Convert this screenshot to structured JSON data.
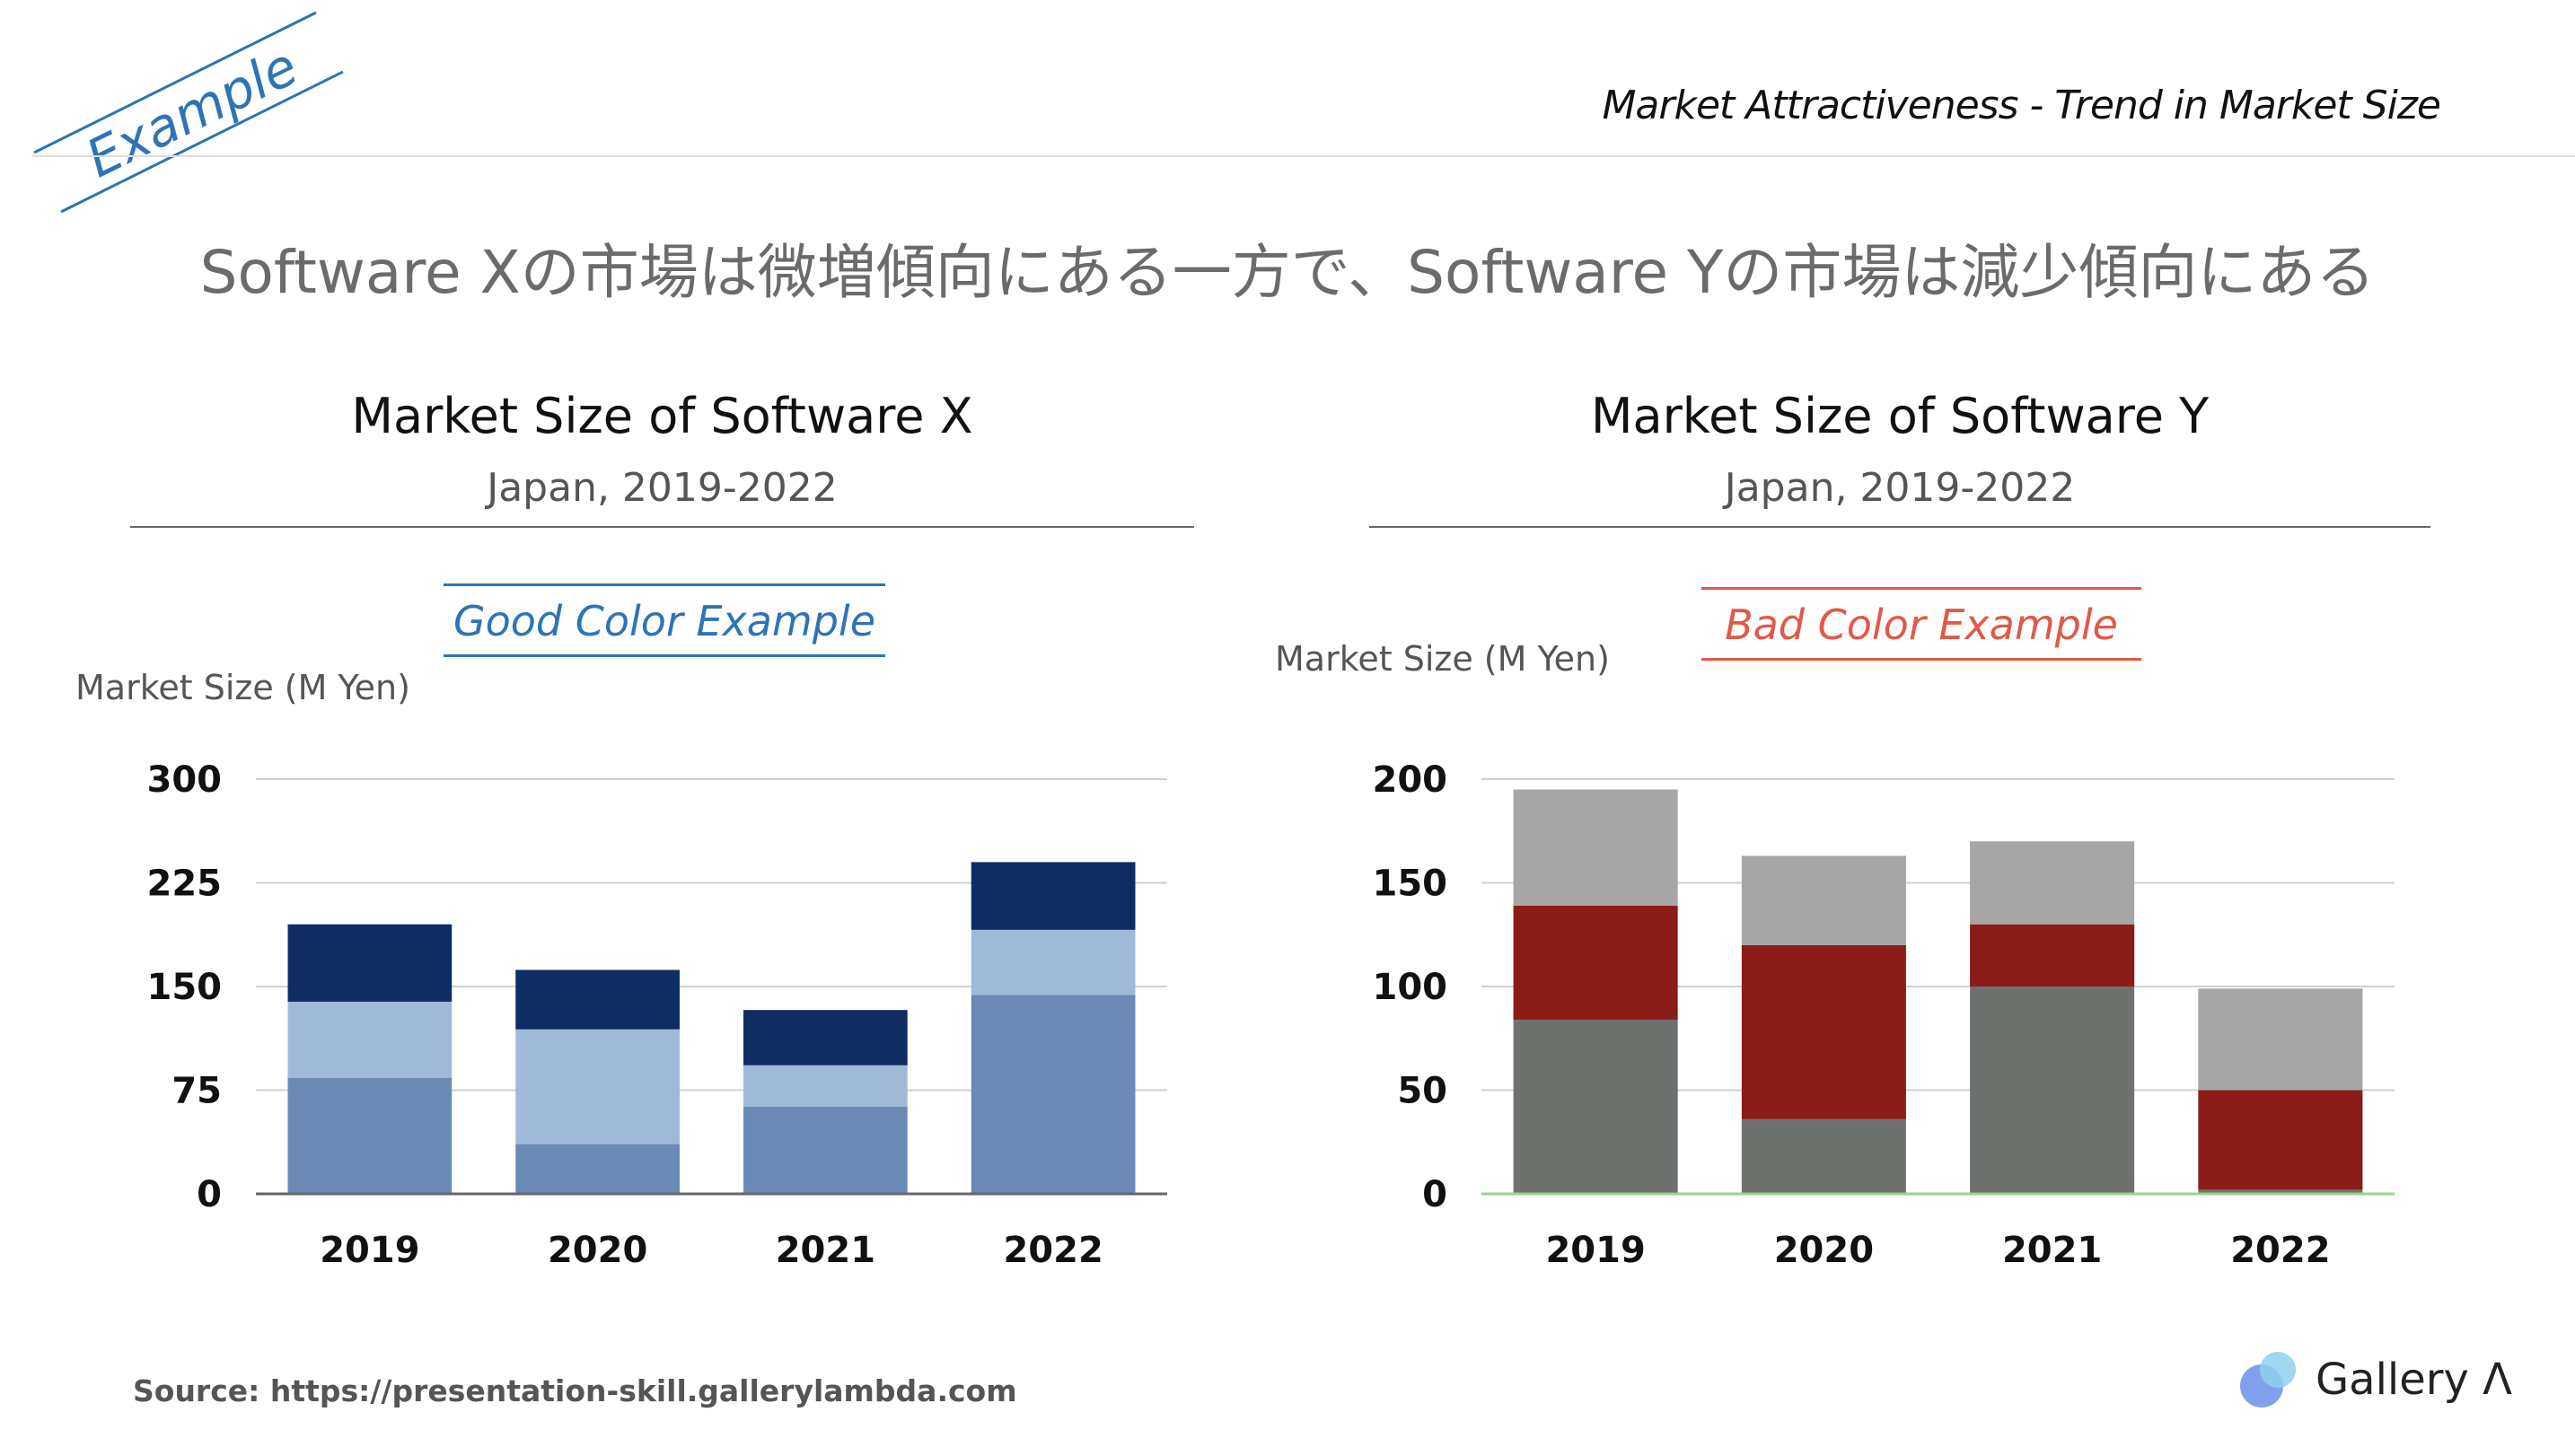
{
  "header": {
    "title": "Market Attractiveness - Trend in Market Size",
    "stamp": "Example"
  },
  "headline": "Software Xの市場は微増傾向にある一方で、Software Yの市場は減少傾向にある",
  "left": {
    "title": "Market Size of Software X",
    "subtitle": "Japan, 2019-2022",
    "tag": "Good Color Example",
    "unit": "Market Size (M Yen)"
  },
  "right": {
    "title": "Market Size of Software Y",
    "subtitle": "Japan, 2019-2022",
    "tag": "Bad Color Example",
    "unit": "Market Size (M Yen)"
  },
  "footer": {
    "source": "Source: https://presentation-skill.gallerylambda.com",
    "logo": "Gallery Λ"
  },
  "colors": {
    "good_tag": "#2e74b5",
    "bad_tag": "#e05a47"
  },
  "chart_data": [
    {
      "type": "bar",
      "stacked": true,
      "categories": [
        "2019",
        "2020",
        "2021",
        "2022"
      ],
      "series": [
        {
          "values": [
            84,
            36,
            63,
            144
          ],
          "color": "#6a89b5"
        },
        {
          "values": [
            55,
            83,
            30,
            47
          ],
          "color": "#9fbad8"
        },
        {
          "values": [
            56,
            43,
            40,
            49
          ],
          "color": "#0f2d63"
        }
      ],
      "ylim": [
        0,
        300
      ],
      "yticks": [
        0,
        75,
        150,
        225,
        300
      ],
      "ylabel": "Market Size (M Yen)",
      "grid": true
    },
    {
      "type": "bar",
      "stacked": true,
      "categories": [
        "2019",
        "2020",
        "2021",
        "2022"
      ],
      "series": [
        {
          "values": [
            84,
            36,
            100,
            2
          ],
          "color": "#6d726f"
        },
        {
          "values": [
            55,
            84,
            30,
            48
          ],
          "color": "#8b1c17"
        },
        {
          "values": [
            56,
            43,
            40,
            49
          ],
          "color": "#a6a6a6"
        }
      ],
      "ylim": [
        0,
        200
      ],
      "yticks": [
        0,
        50,
        100,
        150,
        200
      ],
      "ylabel": "Market Size (M Yen)",
      "grid": true
    }
  ]
}
